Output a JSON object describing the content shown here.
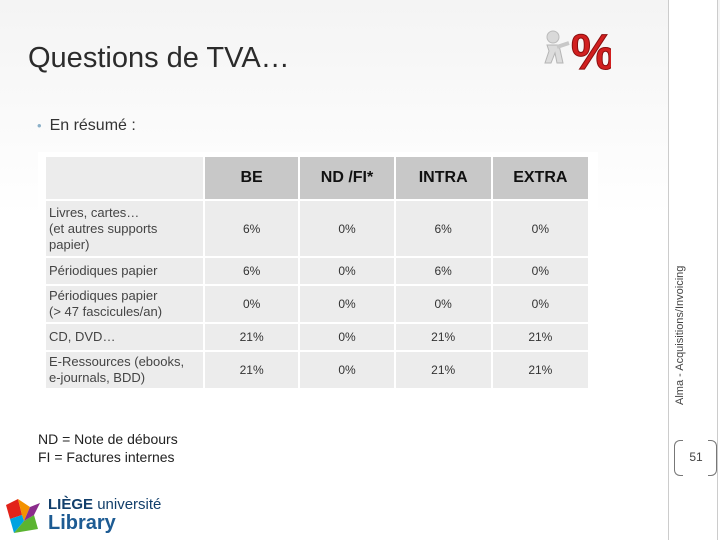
{
  "slide": {
    "title": "Questions de TVA…",
    "bullet": "En résumé :"
  },
  "table": {
    "headers": [
      "BE",
      "ND /FI*",
      "INTRA",
      "EXTRA"
    ],
    "rows": [
      {
        "label": [
          "Livres, cartes…",
          "(et autres supports",
          "papier)"
        ],
        "values": [
          "6%",
          "0%",
          "6%",
          "0%"
        ]
      },
      {
        "label": [
          "Périodiques papier"
        ],
        "values": [
          "6%",
          "0%",
          "6%",
          "0%"
        ]
      },
      {
        "label": [
          "Périodiques papier",
          "(> 47 fascicules/an)"
        ],
        "values": [
          "0%",
          "0%",
          "0%",
          "0%"
        ]
      },
      {
        "label": [
          "CD, DVD…"
        ],
        "values": [
          "21%",
          "0%",
          "21%",
          "21%"
        ]
      },
      {
        "label": [
          "E-Ressources (ebooks,",
          "e-journals, BDD)"
        ],
        "values": [
          "21%",
          "0%",
          "21%",
          "21%"
        ]
      }
    ]
  },
  "notes": [
    "ND = Note de débours",
    "FI = Factures internes"
  ],
  "sidebar": {
    "vertical_text": "Alma - Acquisitions/Invoicing",
    "page_number": "51"
  },
  "logo": {
    "liege_text": "LIÈGE",
    "universite_text": "université",
    "library_text": "Library"
  },
  "illustration": {
    "icon": "percent-push-icon",
    "accent_color": "#d11f1f"
  }
}
